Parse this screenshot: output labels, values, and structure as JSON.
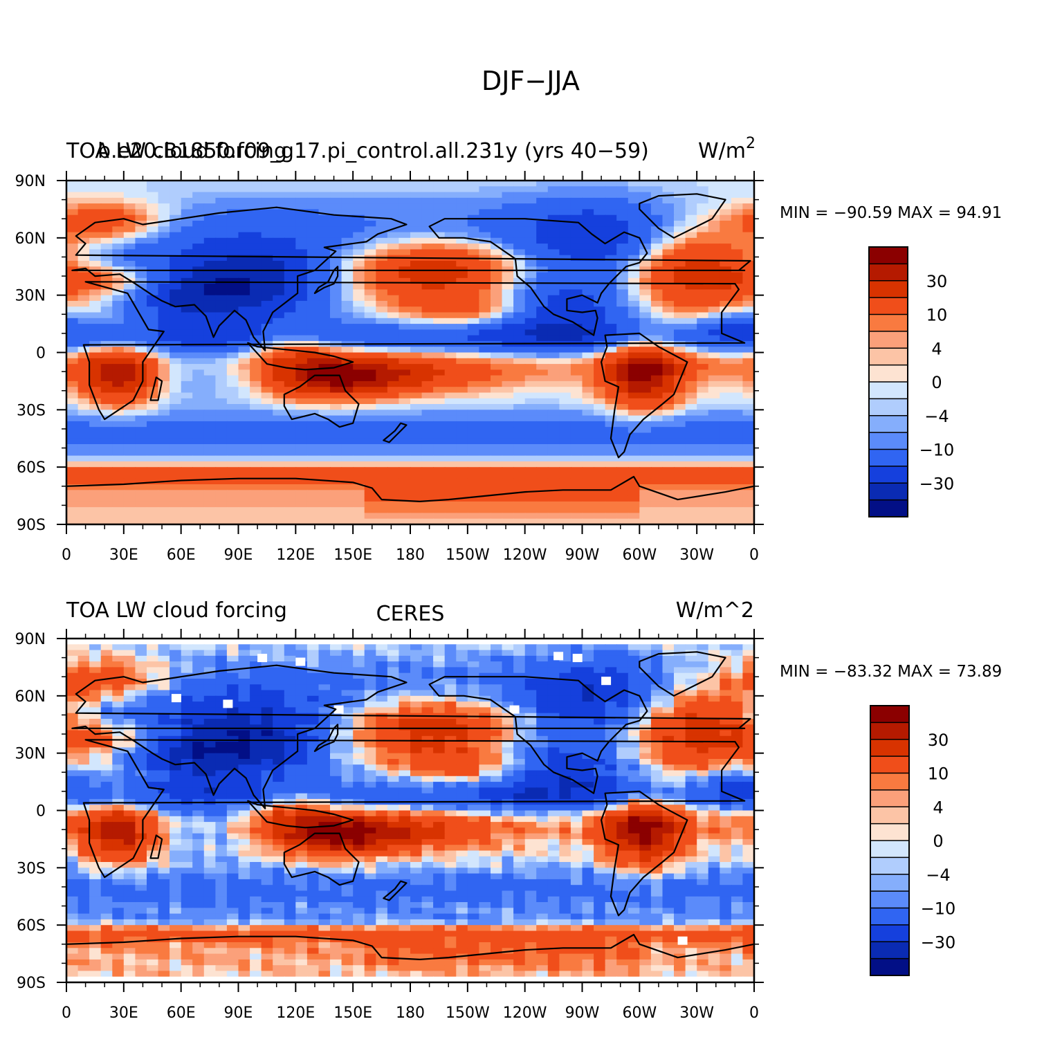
{
  "figure": {
    "title": "DJF−JJA",
    "colors": {
      "background": "#ffffff",
      "ocean_deep": "#0a2bb3",
      "coastline": "#000000"
    }
  },
  "chart_data": [
    {
      "type": "heatmap",
      "subtype": "filled-contour-map",
      "projection": "cylindrical-equidistant",
      "title_left": "TOA LW cloud forcing",
      "title_center": "b.e20.B1850.f09_g17.pi_control.all.231y (yrs 40−59)",
      "title_right": "W/m",
      "title_right_superscript": "2",
      "stats": {
        "label": "MIN = −90.59  MAX =   94.91",
        "min": -90.59,
        "max": 94.91
      },
      "x_ticks": [
        "0",
        "30E",
        "60E",
        "90E",
        "120E",
        "150E",
        "180",
        "150W",
        "120W",
        "90W",
        "60W",
        "30W",
        "0"
      ],
      "y_ticks": [
        "90N",
        "60N",
        "30N",
        "0",
        "30S",
        "60S",
        "90S"
      ],
      "xlim": [
        0,
        360
      ],
      "ylim": [
        -90,
        90
      ],
      "grid": false,
      "colorbar": {
        "levels": [
          -50,
          -40,
          -30,
          -20,
          -10,
          -6,
          -4,
          -2,
          0,
          2,
          4,
          6,
          10,
          20,
          30,
          40,
          50
        ],
        "labels": [
          "30",
          "10",
          "4",
          "0",
          "−4",
          "−10",
          "−30"
        ],
        "colors": [
          "#8b0000",
          "#b51a00",
          "#d83300",
          "#f04e1a",
          "#f97a40",
          "#fba07a",
          "#fcc4a6",
          "#fde3d2",
          "#d2e6fd",
          "#b0cdfd",
          "#85aefc",
          "#5b8bfa",
          "#3065f2",
          "#1540dd",
          "#0a2bb3",
          "#020f86"
        ]
      }
    },
    {
      "type": "heatmap",
      "subtype": "filled-contour-map",
      "projection": "cylindrical-equidistant",
      "title_left": "TOA LW cloud forcing",
      "title_center": "CERES",
      "title_right": "W/m^2",
      "stats": {
        "label": "MIN = −83.32  MAX =   73.89",
        "min": -83.32,
        "max": 73.89
      },
      "x_ticks": [
        "0",
        "30E",
        "60E",
        "90E",
        "120E",
        "150E",
        "180",
        "150W",
        "120W",
        "90W",
        "60W",
        "30W",
        "0"
      ],
      "y_ticks": [
        "90N",
        "60N",
        "30N",
        "0",
        "30S",
        "60S",
        "90S"
      ],
      "xlim": [
        0,
        360
      ],
      "ylim": [
        -90,
        90
      ],
      "grid": false,
      "missing_data": "white",
      "colorbar": {
        "levels": [
          -50,
          -40,
          -30,
          -20,
          -10,
          -6,
          -4,
          -2,
          0,
          2,
          4,
          6,
          10,
          20,
          30,
          40,
          50
        ],
        "labels": [
          "30",
          "10",
          "4",
          "0",
          "−4",
          "−10",
          "−30"
        ],
        "colors": [
          "#8b0000",
          "#b51a00",
          "#d83300",
          "#f04e1a",
          "#f97a40",
          "#fba07a",
          "#fcc4a6",
          "#fde3d2",
          "#d2e6fd",
          "#b0cdfd",
          "#85aefc",
          "#5b8bfa",
          "#3065f2",
          "#1540dd",
          "#0a2bb3",
          "#020f86"
        ]
      }
    }
  ]
}
